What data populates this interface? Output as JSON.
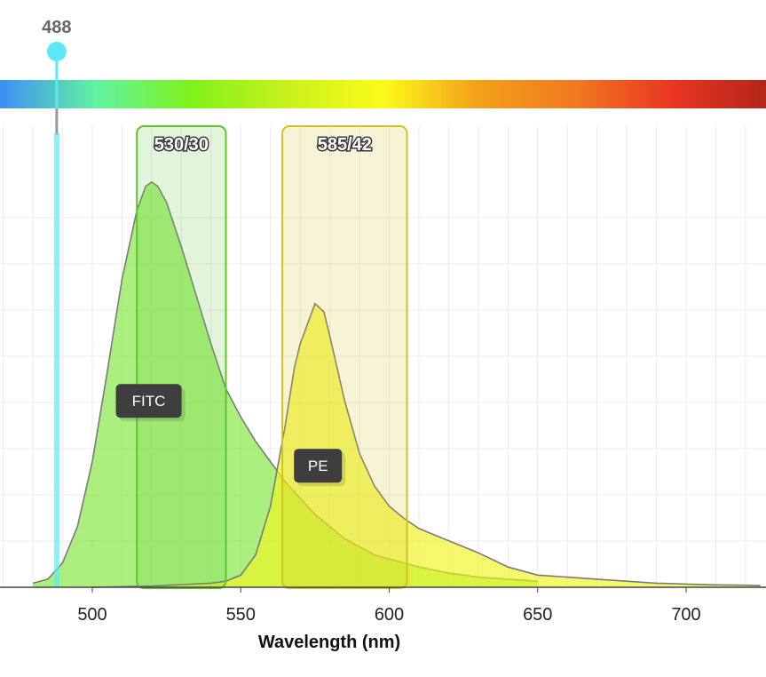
{
  "chart_data": {
    "type": "area",
    "xlabel": "Wavelength (nm)",
    "xlim": [
      470,
      725
    ],
    "ylim": [
      0,
      100
    ],
    "x_ticks": [
      500,
      550,
      600,
      650,
      700
    ],
    "x_tick_labels": [
      "500",
      "550",
      "600",
      "650",
      "700"
    ],
    "grid": true,
    "laser": {
      "wavelength": 488,
      "label": "488",
      "color": "#5ee8f5"
    },
    "filters": [
      {
        "label": "530/30",
        "center": 530,
        "width": 30,
        "color": "#5cc630"
      },
      {
        "label": "585/42",
        "center": 585,
        "width": 42,
        "color": "#d4c21e"
      }
    ],
    "series": [
      {
        "name": "FITC",
        "color": "#7ee83a",
        "x": [
          480,
          485,
          490,
          495,
          500,
          505,
          510,
          515,
          518,
          520,
          522,
          525,
          530,
          535,
          540,
          545,
          550,
          555,
          560,
          565,
          570,
          575,
          580,
          585,
          590,
          595,
          600,
          610,
          620,
          630,
          640,
          650
        ],
        "y": [
          1,
          2,
          6,
          15,
          31,
          53,
          76,
          93,
          99,
          100,
          99,
          95,
          84,
          72,
          60,
          49,
          42,
          36,
          31,
          26,
          22,
          18,
          15,
          12,
          10,
          8,
          7,
          5,
          3.5,
          2.5,
          2,
          1.5
        ]
      },
      {
        "name": "PE",
        "color": "#f0f41e",
        "x": [
          500,
          520,
          540,
          545,
          550,
          555,
          560,
          565,
          568,
          570,
          572,
          575,
          578,
          580,
          585,
          590,
          595,
          600,
          605,
          610,
          620,
          630,
          640,
          650,
          660,
          670,
          680,
          690,
          700,
          710,
          720,
          725
        ],
        "y": [
          0,
          0.3,
          1,
          1.5,
          3,
          8,
          20,
          40,
          54,
          60,
          64,
          70,
          68,
          62,
          46,
          33,
          25,
          20,
          17,
          14.5,
          11.5,
          8.5,
          5,
          3,
          2.5,
          2,
          1.5,
          1,
          0.8,
          0.6,
          0.5,
          0.4
        ]
      }
    ],
    "series_label_anchor": [
      {
        "name": "FITC",
        "x": 519,
        "y": 46
      },
      {
        "name": "PE",
        "x": 576,
        "y": 30
      }
    ]
  },
  "spectrum_bar": {
    "colors": [
      "#3d8ff2",
      "#62f2a2",
      "#80f21a",
      "#c8f21a",
      "#fbfb1a",
      "#f2a01a",
      "#f07a22",
      "#ea3622",
      "#b2261a"
    ]
  }
}
